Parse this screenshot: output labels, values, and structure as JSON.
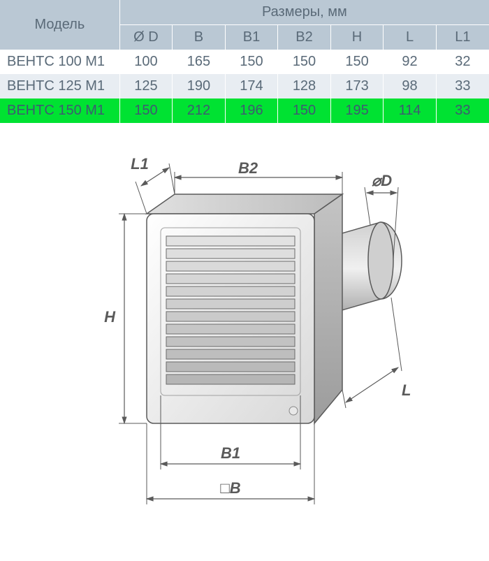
{
  "table": {
    "header_model": "Модель",
    "header_dims": "Размеры, мм",
    "columns": [
      "Ø D",
      "B",
      "B1",
      "B2",
      "H",
      "L",
      "L1"
    ],
    "rows": [
      {
        "model": "ВЕНТС 100 М1",
        "values": [
          "100",
          "165",
          "150",
          "150",
          "150",
          "92",
          "32"
        ],
        "highlight": false,
        "shade": "odd"
      },
      {
        "model": "ВЕНТС 125 М1",
        "values": [
          "125",
          "190",
          "174",
          "128",
          "173",
          "98",
          "33"
        ],
        "highlight": false,
        "shade": "even"
      },
      {
        "model": "ВЕНТС 150 М1",
        "values": [
          "150",
          "212",
          "196",
          "150",
          "195",
          "114",
          "33"
        ],
        "highlight": true,
        "shade": "odd"
      }
    ],
    "header_bg": "#bac8d4",
    "row_even_bg": "#e8edf2",
    "row_odd_bg": "#ffffff",
    "highlight_bg": "#00e232",
    "text_color": "#5a6a78",
    "border_color": "#ffffff",
    "font_size": 20
  },
  "diagram": {
    "labels": {
      "L1": "L1",
      "B2": "B2",
      "D": "⌀D",
      "H": "H",
      "L": "L",
      "B1": "B1",
      "B": "□B"
    },
    "stroke_color": "#5a5a5a",
    "fill_light": "#f4f4f4",
    "fill_mid": "#dcdcdc",
    "fill_dark": "#b8b8b8",
    "label_fontsize": 22
  }
}
